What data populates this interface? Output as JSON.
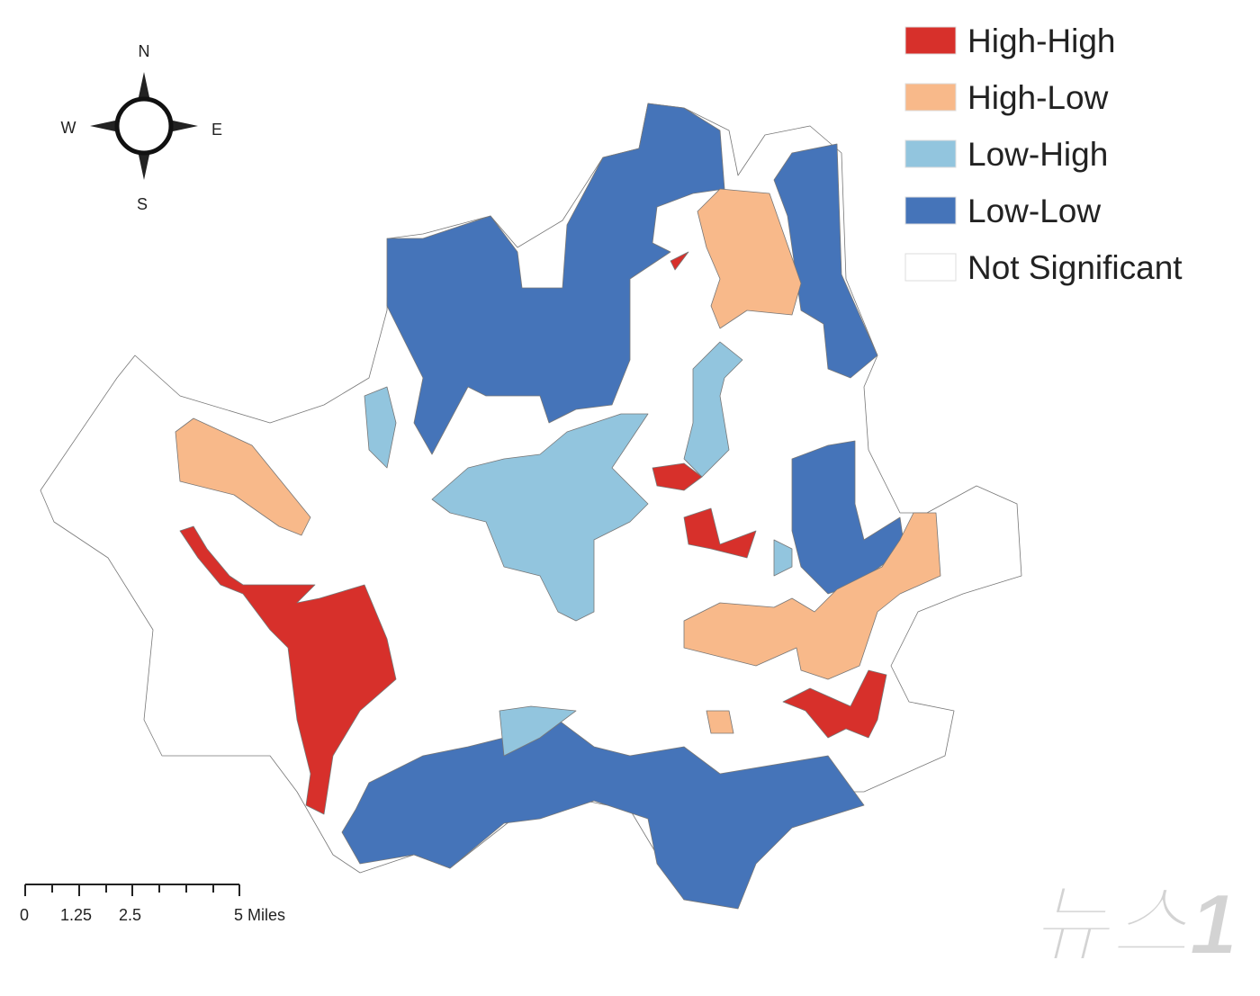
{
  "title_legend": {
    "items": [
      {
        "label": "High-High",
        "color": "#d7302b"
      },
      {
        "label": "High-Low",
        "color": "#f8b98a"
      },
      {
        "label": "Low-High",
        "color": "#92c5de"
      },
      {
        "label": "Low-Low",
        "color": "#4574b9"
      },
      {
        "label": "Not Significant",
        "color": "#ffffff"
      }
    ]
  },
  "compass": {
    "north": "N",
    "south": "S",
    "east": "E",
    "west": "W"
  },
  "scale_bar": {
    "labels": [
      "0",
      "1.25",
      "2.5",
      "5 Miles"
    ]
  },
  "watermark": "뉴스1"
}
